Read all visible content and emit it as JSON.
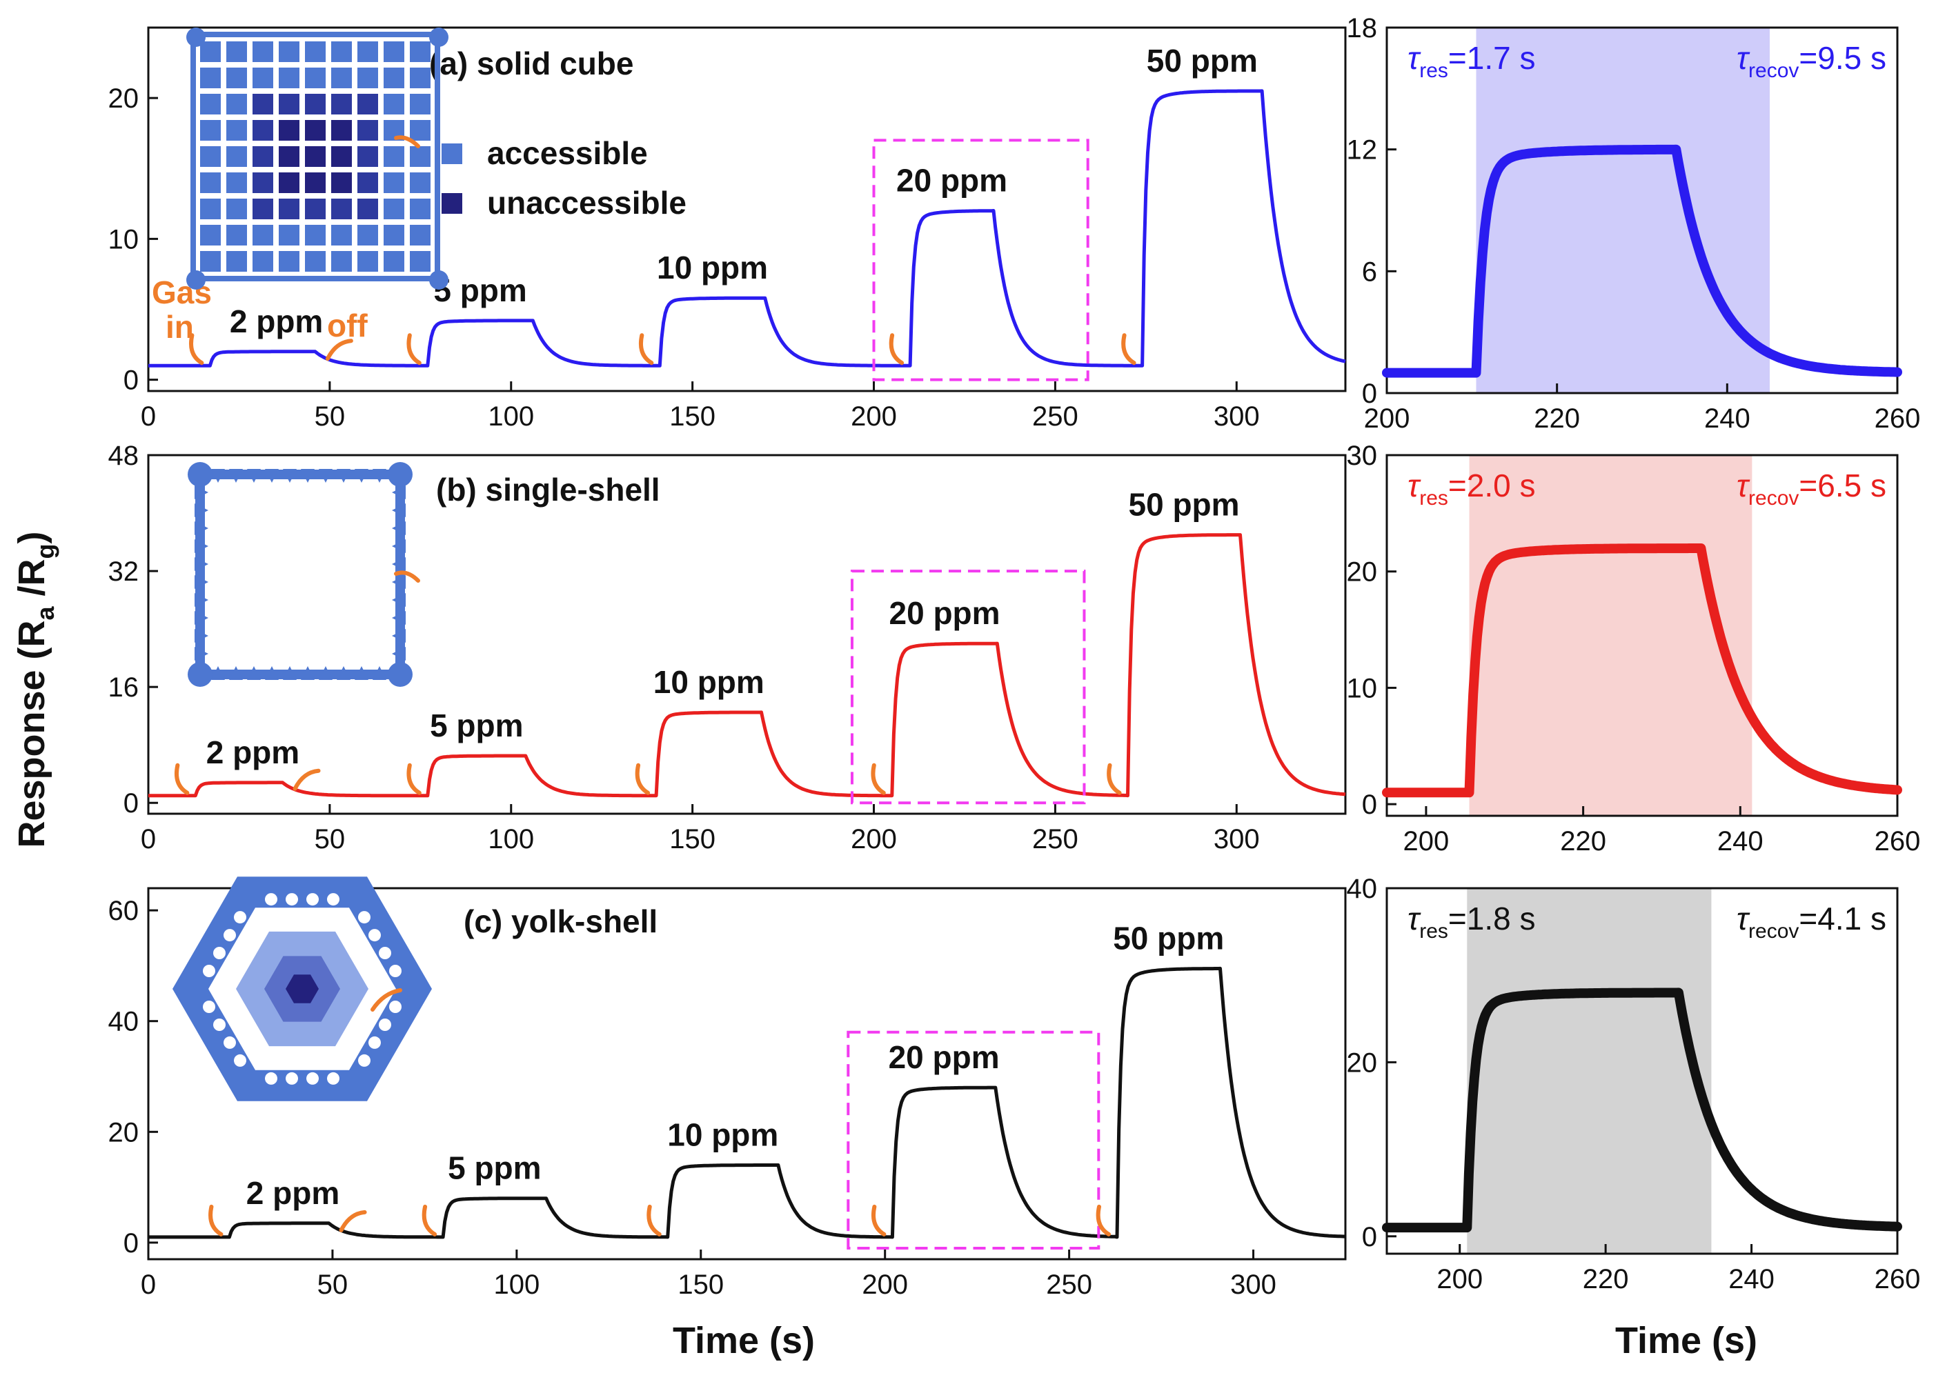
{
  "figure": {
    "y_axis_title": "Response (R",
    "y_axis_sub_a": "a",
    "y_axis_sep": " /R",
    "y_axis_sub_g": "g",
    "y_axis_close": ")",
    "x_axis_title": "Time (s)",
    "legend": {
      "accessible": "accessible",
      "unaccessible": "unaccessible"
    },
    "arrow_labels": {
      "gas": "Gas",
      "in": "in",
      "off": "off"
    },
    "tau_symbol": "τ",
    "res_sub": "res",
    "recov_sub": "recov"
  },
  "colors": {
    "a": "#2a1cf0",
    "b": "#e8201e",
    "c": "#111111",
    "crystal_light": "#4d77d1",
    "crystal_dark": "#23217d",
    "box": "#f23bf0",
    "arrow": "#ef7d2a"
  },
  "chart_data": [
    {
      "id": "a",
      "type": "line",
      "title": "(a) solid cube",
      "xlabel": "",
      "ylabel": "Response (Ra/Rg)",
      "xlim": [
        0,
        330
      ],
      "ylim": [
        -0.8,
        25
      ],
      "xticks": [
        0,
        50,
        100,
        150,
        200,
        250,
        300
      ],
      "yticks": [
        0,
        10,
        20
      ],
      "baseline": 1.0,
      "pulses": [
        {
          "label": "2 ppm",
          "on": 17,
          "off": 46,
          "peak": 2.0
        },
        {
          "label": "5 ppm",
          "on": 77,
          "off": 106,
          "peak": 4.2
        },
        {
          "label": "10 ppm",
          "on": 141,
          "off": 170,
          "peak": 5.8
        },
        {
          "label": "20 ppm",
          "on": 210,
          "off": 233,
          "peak": 12.0
        },
        {
          "label": "50 ppm",
          "on": 274,
          "off": 307,
          "peak": 20.5
        }
      ],
      "dashed_box": {
        "x": [
          200,
          259
        ],
        "y": [
          0,
          17
        ]
      }
    },
    {
      "id": "b",
      "type": "line",
      "title": "(b) single-shell",
      "xlabel": "",
      "ylabel": "Response (Ra/Rg)",
      "xlim": [
        0,
        330
      ],
      "ylim": [
        -1.5,
        48
      ],
      "xticks": [
        0,
        50,
        100,
        150,
        200,
        250,
        300
      ],
      "yticks": [
        0,
        16,
        32,
        48
      ],
      "baseline": 1.0,
      "pulses": [
        {
          "label": "2 ppm",
          "on": 13,
          "off": 37,
          "peak": 2.8
        },
        {
          "label": "5 ppm",
          "on": 77,
          "off": 104,
          "peak": 6.5
        },
        {
          "label": "10 ppm",
          "on": 140,
          "off": 169,
          "peak": 12.5
        },
        {
          "label": "20 ppm",
          "on": 205,
          "off": 234,
          "peak": 22.0
        },
        {
          "label": "50 ppm",
          "on": 270,
          "off": 301,
          "peak": 37.0
        }
      ],
      "dashed_box": {
        "x": [
          194,
          258
        ],
        "y": [
          0,
          32
        ]
      }
    },
    {
      "id": "c",
      "type": "line",
      "title": "(c) yolk-shell",
      "xlabel": "Time (s)",
      "ylabel": "Response (Ra/Rg)",
      "xlim": [
        0,
        325
      ],
      "ylim": [
        -3,
        64
      ],
      "xticks": [
        0,
        50,
        100,
        150,
        200,
        250,
        300
      ],
      "yticks": [
        0,
        20,
        40,
        60
      ],
      "baseline": 1.0,
      "pulses": [
        {
          "label": "2 ppm",
          "on": 22,
          "off": 49,
          "peak": 3.5
        },
        {
          "label": "5 ppm",
          "on": 80,
          "off": 108,
          "peak": 8.0
        },
        {
          "label": "10 ppm",
          "on": 141,
          "off": 171,
          "peak": 14.0
        },
        {
          "label": "20 ppm",
          "on": 202,
          "off": 230,
          "peak": 28.0
        },
        {
          "label": "50 ppm",
          "on": 263,
          "off": 291,
          "peak": 49.5
        }
      ],
      "dashed_box": {
        "x": [
          190,
          258
        ],
        "y": [
          -1,
          38
        ]
      }
    },
    {
      "id": "a_zoom",
      "type": "scatter",
      "xlabel": "",
      "ylabel": "",
      "xlim": [
        200,
        260
      ],
      "ylim": [
        0,
        18
      ],
      "xticks": [
        200,
        220,
        240,
        260
      ],
      "yticks": [
        0,
        6,
        12,
        18
      ],
      "baseline": 1.0,
      "peak": 12.0,
      "on": 210.5,
      "off": 234,
      "shade": [
        210.5,
        245
      ],
      "tau_res": "=1.7 s",
      "tau_recov": "=9.5 s"
    },
    {
      "id": "b_zoom",
      "type": "scatter",
      "xlabel": "",
      "ylabel": "",
      "xlim": [
        195,
        260
      ],
      "ylim": [
        -1,
        30
      ],
      "xticks": [
        200,
        220,
        240,
        260
      ],
      "yticks": [
        0,
        10,
        20,
        30
      ],
      "baseline": 1.0,
      "peak": 22.0,
      "on": 205.5,
      "off": 235,
      "shade": [
        205.5,
        241.5
      ],
      "tau_res": "=2.0 s",
      "tau_recov": "=6.5 s"
    },
    {
      "id": "c_zoom",
      "type": "scatter",
      "xlabel": "Time (s)",
      "ylabel": "",
      "xlim": [
        190,
        260
      ],
      "ylim": [
        -2,
        40
      ],
      "xticks": [
        200,
        220,
        240,
        260
      ],
      "yticks": [
        0,
        20,
        40
      ],
      "baseline": 1.0,
      "peak": 28.0,
      "on": 201,
      "off": 230,
      "shade": [
        201,
        234.5
      ],
      "tau_res": "=1.8 s",
      "tau_recov": "=4.1 s"
    }
  ]
}
